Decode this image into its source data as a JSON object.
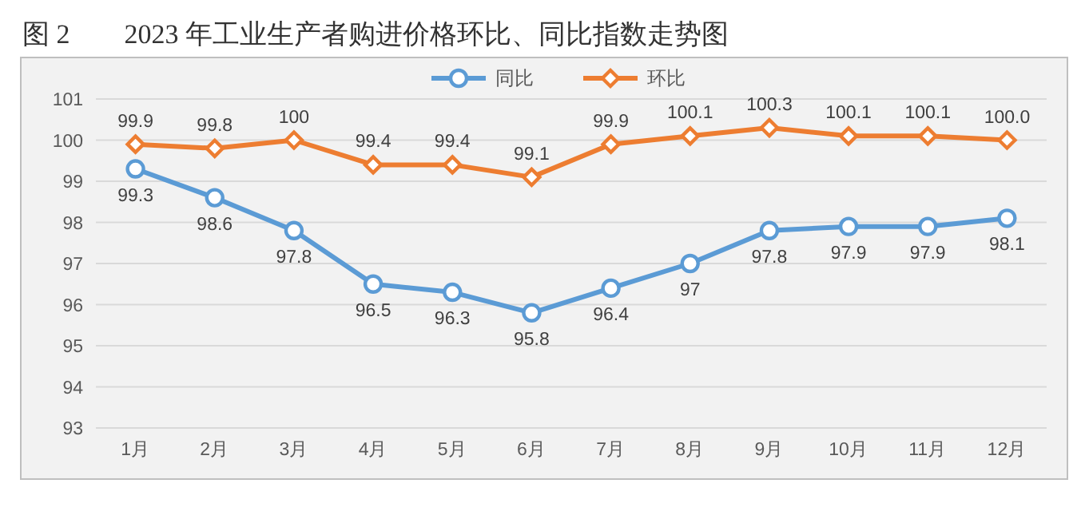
{
  "chart_data": {
    "type": "line",
    "title": "图 2　　2023 年工业生产者购进价格环比、同比指数走势图",
    "categories": [
      "1月",
      "2月",
      "3月",
      "4月",
      "5月",
      "6月",
      "7月",
      "8月",
      "9月",
      "10月",
      "11月",
      "12月"
    ],
    "series": [
      {
        "name": "同比",
        "color": "#5b9bd5",
        "marker": "circle",
        "values": [
          99.3,
          98.6,
          97.8,
          96.5,
          96.3,
          95.8,
          96.4,
          97,
          97.8,
          97.9,
          97.9,
          98.1
        ],
        "value_labels": [
          "99.3",
          "98.6",
          "97.8",
          "96.5",
          "96.3",
          "95.8",
          "96.4",
          "97",
          "97.8",
          "97.9",
          "97.9",
          "98.1"
        ]
      },
      {
        "name": "环比",
        "color": "#ed7d31",
        "marker": "diamond",
        "values": [
          99.9,
          99.8,
          100,
          99.4,
          99.4,
          99.1,
          99.9,
          100.1,
          100.3,
          100.1,
          100.1,
          100.0
        ],
        "value_labels": [
          "99.9",
          "99.8",
          "100",
          "99.4",
          "99.4",
          "99.1",
          "99.9",
          "100.1",
          "100.3",
          "100.1",
          "100.1",
          "100.0"
        ]
      }
    ],
    "ylim": [
      93,
      101
    ],
    "yticks": [
      93,
      94,
      95,
      96,
      97,
      98,
      99,
      100,
      101
    ],
    "grid": "y",
    "legend": "top"
  }
}
